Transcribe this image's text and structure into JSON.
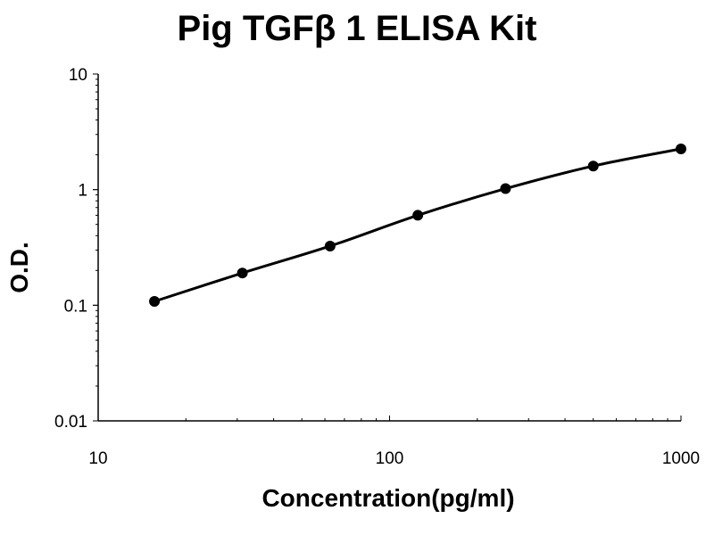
{
  "chart_data": {
    "type": "scatter",
    "title": "Pig TGFβ 1 ELISA Kit",
    "xlabel": "Concentration(pg/ml)",
    "ylabel": "O.D.",
    "x_scale": "log",
    "y_scale": "log",
    "xlim": [
      10,
      1000
    ],
    "ylim": [
      0.01,
      10
    ],
    "x_ticks": [
      "10",
      "100",
      "1000"
    ],
    "y_ticks": [
      "10",
      "1",
      "0.1",
      "0.01"
    ],
    "grid": false,
    "series": [
      {
        "x": [
          15.6,
          31.25,
          62.5,
          125,
          250,
          500,
          1000
        ],
        "y": [
          0.108,
          0.19,
          0.325,
          0.6,
          1.02,
          1.6,
          2.25
        ]
      }
    ],
    "colors": {
      "marker": "#000000",
      "line": "#000000"
    }
  }
}
